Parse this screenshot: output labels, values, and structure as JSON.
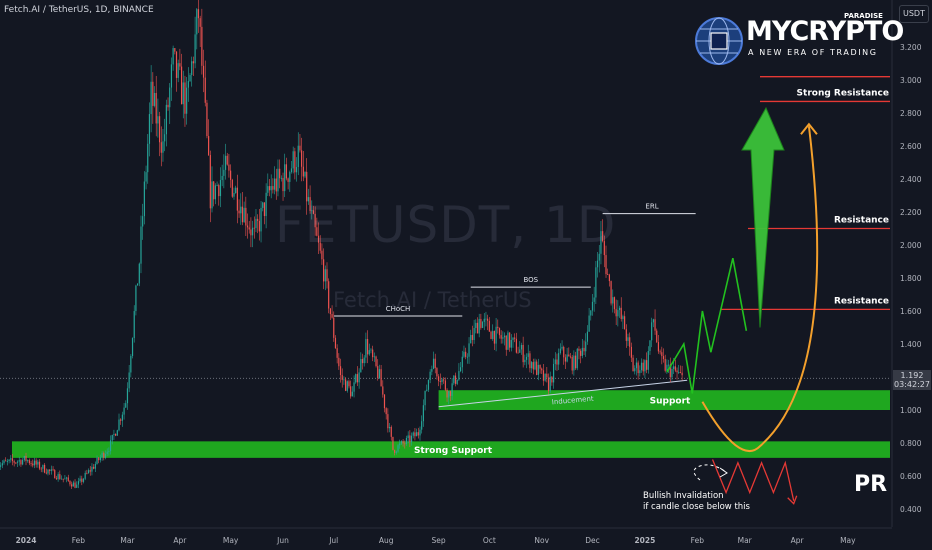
{
  "header": {
    "symbol_line": "Fetch.AI / TetherUS, 1D, BINANCE",
    "currency": "USDT"
  },
  "watermark": {
    "ticker": "FETUSDT, 1D",
    "name": "Fetch.AI / TetherUS"
  },
  "logo": {
    "brand": "MYCRYPTO",
    "superscript": "PARADISE",
    "tagline": "A NEW ERA OF TRADING"
  },
  "price_badge": {
    "price": "1.192",
    "countdown": "03:42:27"
  },
  "footer_mark": "PR",
  "colors": {
    "background": "#131722",
    "up": "#26a69a",
    "down": "#ef5350",
    "zone": "#22c11f",
    "resistance": "#e53935",
    "projection": "#22c11f",
    "path_orange": "#f3a02c"
  },
  "chart_data": {
    "type": "candlestick",
    "y_axis": {
      "scale": "linear",
      "min": 0.3,
      "max": 3.45,
      "ticks": [
        0.4,
        0.6,
        0.8,
        1.0,
        1.2,
        1.4,
        1.6,
        1.8,
        2.0,
        2.2,
        2.4,
        2.6,
        2.8,
        3.0,
        3.2
      ],
      "tick_labels": [
        "0.400",
        "0.600",
        "0.800",
        "1.000",
        "1.200",
        "1.400",
        "1.600",
        "1.800",
        "2.000",
        "2.200",
        "2.400",
        "2.600",
        "2.800",
        "3.000",
        "3.200"
      ]
    },
    "x_axis": {
      "ticks": [
        "2024-01-01",
        "2024-02-01",
        "2024-03-01",
        "2024-04-01",
        "2024-05-01",
        "2024-06-01",
        "2024-07-01",
        "2024-08-01",
        "2024-09-01",
        "2024-10-01",
        "2024-11-01",
        "2024-12-01",
        "2025-01-01",
        "2025-02-01",
        "2025-03-01",
        "2025-04-01",
        "2025-05-01"
      ],
      "tick_labels": [
        "2024",
        "Feb",
        "Mar",
        "Apr",
        "May",
        "Jun",
        "Jul",
        "Aug",
        "Sep",
        "Oct",
        "Nov",
        "Dec",
        "2025",
        "Feb",
        "Mar",
        "Apr",
        "May"
      ]
    },
    "price_path": [
      [
        "2023-12-15",
        0.67
      ],
      [
        "2024-01-01",
        0.7
      ],
      [
        "2024-01-20",
        0.6
      ],
      [
        "2024-01-31",
        0.54
      ],
      [
        "2024-02-10",
        0.66
      ],
      [
        "2024-02-20",
        0.79
      ],
      [
        "2024-02-29",
        1.05
      ],
      [
        "2024-03-08",
        1.9
      ],
      [
        "2024-03-15",
        2.9
      ],
      [
        "2024-03-22",
        2.6
      ],
      [
        "2024-03-28",
        3.1
      ],
      [
        "2024-04-05",
        2.85
      ],
      [
        "2024-04-12",
        3.4
      ],
      [
        "2024-04-19",
        2.3
      ],
      [
        "2024-04-28",
        2.45
      ],
      [
        "2024-05-05",
        2.3
      ],
      [
        "2024-05-15",
        2.05
      ],
      [
        "2024-05-25",
        2.35
      ],
      [
        "2024-06-01",
        2.4
      ],
      [
        "2024-06-10",
        2.55
      ],
      [
        "2024-06-17",
        2.2
      ],
      [
        "2024-06-25",
        1.85
      ],
      [
        "2024-07-05",
        1.2
      ],
      [
        "2024-07-12",
        1.1
      ],
      [
        "2024-07-20",
        1.4
      ],
      [
        "2024-07-28",
        1.2
      ],
      [
        "2024-08-05",
        0.76
      ],
      [
        "2024-08-12",
        0.8
      ],
      [
        "2024-08-20",
        0.86
      ],
      [
        "2024-08-28",
        1.3
      ],
      [
        "2024-09-07",
        1.1
      ],
      [
        "2024-09-15",
        1.28
      ],
      [
        "2024-09-25",
        1.55
      ],
      [
        "2024-10-05",
        1.45
      ],
      [
        "2024-10-15",
        1.4
      ],
      [
        "2024-10-25",
        1.3
      ],
      [
        "2024-11-05",
        1.15
      ],
      [
        "2024-11-12",
        1.35
      ],
      [
        "2024-11-20",
        1.28
      ],
      [
        "2024-11-28",
        1.45
      ],
      [
        "2024-12-06",
        2.05
      ],
      [
        "2024-12-12",
        1.7
      ],
      [
        "2024-12-20",
        1.5
      ],
      [
        "2024-12-25",
        1.25
      ],
      [
        "2025-01-02",
        1.28
      ],
      [
        "2025-01-06",
        1.55
      ],
      [
        "2025-01-10",
        1.3
      ],
      [
        "2025-01-14",
        1.25
      ],
      [
        "2025-01-19",
        1.23
      ],
      [
        "2025-01-23",
        1.192
      ]
    ],
    "zones": [
      {
        "label": "Strong Support",
        "from": 0.71,
        "to": 0.81
      },
      {
        "label": "Support",
        "from": 1.0,
        "to": 1.12
      }
    ],
    "resistance_levels": [
      {
        "label": "Strong Resistance",
        "value": 2.87
      },
      {
        "label": "",
        "value": 3.02
      },
      {
        "label": "Resistance",
        "value": 2.1
      },
      {
        "label": "Resistance",
        "value": 1.61
      }
    ],
    "structure_lines": [
      {
        "label": "CHoCH",
        "value": 1.57,
        "from": "2024-07-01",
        "to": "2024-09-15"
      },
      {
        "label": "BOS",
        "value": 1.745,
        "from": "2024-09-20",
        "to": "2024-11-30"
      },
      {
        "label": "ERL",
        "value": 2.19,
        "from": "2024-12-07",
        "to": "2025-01-31"
      }
    ],
    "inducement": {
      "label": "Inducement",
      "from": [
        "2024-09-01",
        1.02
      ],
      "to": [
        "2025-01-26",
        1.18
      ]
    },
    "projection": [
      [
        "2025-01-14",
        1.23
      ],
      [
        "2025-01-24",
        1.4
      ],
      [
        "2025-01-29",
        1.1
      ],
      [
        "2025-02-04",
        1.6
      ],
      [
        "2025-02-09",
        1.35
      ],
      [
        "2025-02-22",
        1.92
      ],
      [
        "2025-03-02",
        1.48
      ]
    ],
    "bearish_zigzag": [
      [
        "2025-02-10",
        0.7
      ],
      [
        "2025-02-18",
        0.5
      ],
      [
        "2025-02-25",
        0.68
      ],
      [
        "2025-03-04",
        0.5
      ],
      [
        "2025-03-11",
        0.68
      ],
      [
        "2025-03-18",
        0.5
      ],
      [
        "2025-03-25",
        0.68
      ],
      [
        "2025-03-30",
        0.45
      ]
    ],
    "annotation": "Bullish Invalidation\nif candle close below this",
    "current_price": 1.192,
    "grid": false,
    "legend": "none"
  }
}
